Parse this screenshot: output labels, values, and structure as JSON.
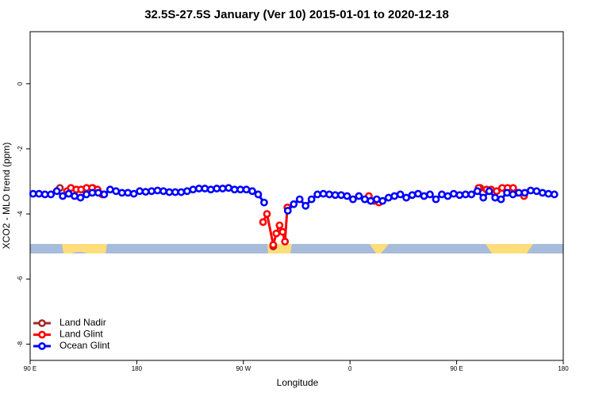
{
  "chart_data": {
    "type": "line",
    "title": "32.5S-27.5S January (Ver 10)   2015-01-01 to 2020-12-18",
    "x_label": "Longitude",
    "y_label": "XCO2 - MLO trend (ppm)",
    "xlim": [
      90,
      540
    ],
    "ylim": [
      -8.5,
      1.6
    ],
    "xticks": [
      {
        "value": 90,
        "label": "90 E"
      },
      180,
      {
        "value": 270,
        "label": "90 W"
      },
      {
        "value": 360,
        "label": "0"
      },
      {
        "value": 450,
        "label": "90 E"
      },
      {
        "value": 540,
        "label": "180"
      }
    ],
    "yticks": [
      0,
      -2,
      -4,
      -6,
      -8
    ],
    "legend": "bottom-left",
    "series": [
      {
        "name": "Land Nadir",
        "color": "#a52a2a",
        "x": [
          115.1,
          null,
          142.9,
          null,
          295.2,
          null,
          469.9
        ],
        "values": [
          -3.2,
          null,
          -3.2,
          null,
          -5.0,
          null,
          -3.2
        ]
      },
      {
        "name": "Land Glint",
        "color": "#ff0000",
        "x": [
          121.1,
          124.4,
          129.0,
          133.0,
          137.6,
          142.3,
          146.9,
          150.9,
          null,
          286.6,
          289.9,
          295.2,
          297.8,
          300.5,
          303.1,
          305.1,
          307.1,
          null,
          375.9,
          380.5,
          384.5,
          null,
          468.5,
          475.2,
          479.1,
          483.8,
          488.4,
          493.0,
          497.7,
          501.6,
          506.9
        ],
        "values": [
          -3.3,
          -3.2,
          -3.25,
          -3.25,
          -3.2,
          -3.2,
          -3.25,
          -3.4,
          null,
          -4.25,
          -4.0,
          -4.95,
          -4.6,
          -4.35,
          -4.55,
          -4.85,
          -3.8,
          null,
          -3.45,
          -3.6,
          -3.65,
          null,
          -3.2,
          -3.25,
          -3.25,
          -3.3,
          -3.2,
          -3.2,
          -3.2,
          -3.35,
          -3.45
        ]
      },
      {
        "name": "Ocean Glint",
        "color": "#0000ff",
        "x": [
          92.5,
          97.5,
          102.5,
          107.5,
          112.5,
          117.5,
          122.5,
          127.5,
          132.5,
          137.5,
          142.5,
          147.5,
          152.5,
          157.5,
          162.5,
          167.5,
          172.5,
          177.5,
          182.5,
          187.5,
          192.5,
          197.5,
          202.5,
          207.5,
          212.5,
          217.5,
          222.5,
          227.5,
          232.5,
          237.5,
          242.5,
          247.5,
          252.5,
          257.5,
          262.5,
          267.5,
          272.5,
          277.5,
          282.5,
          287.5,
          292.5,
          297.5,
          302.5,
          307.5,
          312.5,
          317.5,
          322.5,
          327.5,
          332.5,
          337.5,
          342.5,
          347.5,
          352.5,
          357.5,
          362.5,
          367.5,
          372.5,
          377.5,
          382.5,
          387.5,
          392.5,
          397.5,
          402.5,
          407.5,
          412.5,
          417.5,
          422.5,
          427.5,
          432.5,
          437.5,
          442.5,
          447.5,
          452.5,
          457.5,
          462.5,
          467.5,
          472.5,
          477.5,
          482.5,
          487.5,
          492.5,
          497.5,
          502.5,
          507.5,
          512.5,
          517.5,
          522.5,
          527.5,
          532.5
        ],
        "values": [
          -3.38,
          -3.38,
          -3.4,
          -3.4,
          -3.3,
          -3.45,
          -3.38,
          -3.45,
          -3.5,
          -3.4,
          -3.35,
          -3.35,
          -3.4,
          -3.25,
          -3.3,
          -3.35,
          -3.35,
          -3.38,
          -3.3,
          -3.32,
          -3.3,
          -3.28,
          -3.3,
          -3.33,
          -3.33,
          -3.33,
          -3.3,
          -3.25,
          -3.22,
          -3.22,
          -3.25,
          -3.22,
          -3.22,
          -3.2,
          -3.25,
          -3.25,
          -3.25,
          -3.3,
          -3.4,
          -3.65,
          null,
          null,
          null,
          -3.9,
          -3.7,
          -3.55,
          -3.75,
          -3.55,
          -3.4,
          -3.38,
          -3.4,
          -3.42,
          -3.42,
          -3.45,
          -3.55,
          -3.45,
          -3.55,
          -3.6,
          -3.55,
          -3.6,
          -3.5,
          -3.45,
          -3.4,
          -3.5,
          -3.42,
          -3.38,
          -3.45,
          -3.4,
          -3.55,
          -3.4,
          -3.45,
          -3.38,
          -3.42,
          -3.4,
          -3.4,
          -3.3,
          -3.5,
          -3.3,
          -3.5,
          -3.55,
          -3.35,
          -3.4,
          -3.35,
          -3.35,
          -3.28,
          -3.3,
          -3.35,
          -3.38,
          -3.4
        ]
      }
    ]
  }
}
